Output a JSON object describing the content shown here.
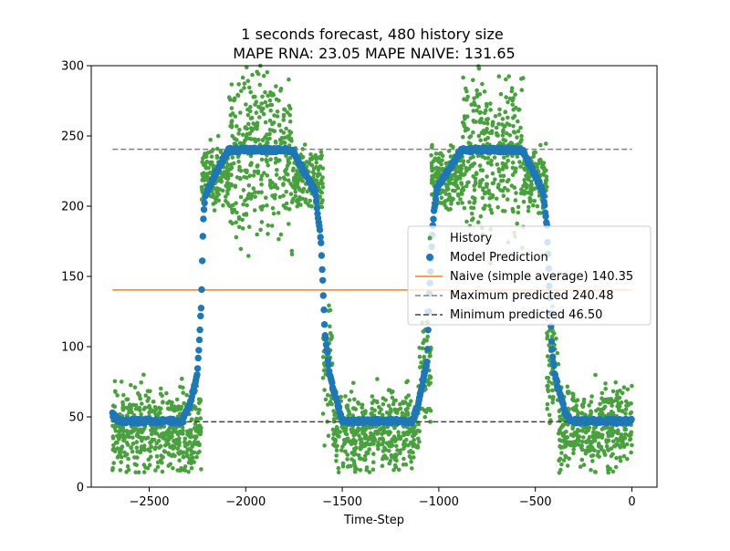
{
  "chart_data": {
    "type": "scatter",
    "title": "1 seconds forecast, 480 history size",
    "subtitle": "MAPE RNA: 23.05 MAPE NAIVE: 131.65",
    "xlabel": "Time-Step",
    "ylabel": "",
    "xlim": [
      -2800,
      130
    ],
    "ylim": [
      0,
      300
    ],
    "x_ticks": [
      -2500,
      -2000,
      -1500,
      -1000,
      -500,
      0
    ],
    "x_tick_labels": [
      "−2500",
      "−2000",
      "−1500",
      "−1000",
      "−500",
      "0"
    ],
    "y_ticks": [
      0,
      50,
      100,
      150,
      200,
      250,
      300
    ],
    "y_tick_labels": [
      "0",
      "50",
      "100",
      "150",
      "200",
      "250",
      "300"
    ],
    "grid": false,
    "legend_position": "center-right",
    "x_range": [
      -2690,
      0
    ],
    "profile_knots": [
      {
        "x": -2690,
        "y": 52
      },
      {
        "x": -2660,
        "y": 47
      },
      {
        "x": -2330,
        "y": 47
      },
      {
        "x": -2290,
        "y": 58
      },
      {
        "x": -2250,
        "y": 82
      },
      {
        "x": -2230,
        "y": 130
      },
      {
        "x": -2220,
        "y": 190
      },
      {
        "x": -2210,
        "y": 208
      },
      {
        "x": -2150,
        "y": 225
      },
      {
        "x": -2090,
        "y": 240
      },
      {
        "x": -1760,
        "y": 240
      },
      {
        "x": -1700,
        "y": 225
      },
      {
        "x": -1640,
        "y": 210
      },
      {
        "x": -1610,
        "y": 175
      },
      {
        "x": -1590,
        "y": 110
      },
      {
        "x": -1565,
        "y": 80
      },
      {
        "x": -1500,
        "y": 47
      },
      {
        "x": -1140,
        "y": 47
      },
      {
        "x": -1110,
        "y": 57
      },
      {
        "x": -1060,
        "y": 90
      },
      {
        "x": -1050,
        "y": 135
      },
      {
        "x": -1030,
        "y": 190
      },
      {
        "x": -1010,
        "y": 212
      },
      {
        "x": -940,
        "y": 228
      },
      {
        "x": -880,
        "y": 240
      },
      {
        "x": -570,
        "y": 240
      },
      {
        "x": -510,
        "y": 225
      },
      {
        "x": -460,
        "y": 210
      },
      {
        "x": -440,
        "y": 185
      },
      {
        "x": -415,
        "y": 100
      },
      {
        "x": -400,
        "y": 80
      },
      {
        "x": -350,
        "y": 55
      },
      {
        "x": -320,
        "y": 47
      },
      {
        "x": 0,
        "y": 47
      }
    ],
    "history_bands": [
      {
        "from": -2690,
        "to": -2230,
        "center": 40,
        "spread": 30
      },
      {
        "from": -2230,
        "to": -2090,
        "center": 220,
        "spread": 22
      },
      {
        "from": -2090,
        "to": -1760,
        "center": 240,
        "spread": 60
      },
      {
        "from": -1760,
        "to": -1600,
        "center": 220,
        "spread": 22
      },
      {
        "from": -1600,
        "to": -1550,
        "center": 85,
        "spread": 40
      },
      {
        "from": -1550,
        "to": -1100,
        "center": 40,
        "spread": 28
      },
      {
        "from": -1100,
        "to": -1040,
        "center": 90,
        "spread": 40
      },
      {
        "from": -1040,
        "to": -880,
        "center": 220,
        "spread": 22
      },
      {
        "from": -880,
        "to": -560,
        "center": 240,
        "spread": 60
      },
      {
        "from": -560,
        "to": -440,
        "center": 220,
        "spread": 22
      },
      {
        "from": -440,
        "to": -380,
        "center": 85,
        "spread": 40
      },
      {
        "from": -380,
        "to": 0,
        "center": 42,
        "spread": 28
      }
    ],
    "series": [
      {
        "name": "History",
        "kind": "scatter",
        "color": "#4aa03f"
      },
      {
        "name": "Model Prediction",
        "kind": "scatter",
        "color": "#1f77b4"
      },
      {
        "name": "Naive (simple average) 140.35",
        "kind": "hline",
        "value": 140.35,
        "color": "#ff7f0e"
      },
      {
        "name": "Maximum predicted 240.48",
        "kind": "hline-dashed",
        "value": 240.48,
        "color": "#808080"
      },
      {
        "name": "Minimum predicted 46.50",
        "kind": "hline-dashed",
        "value": 46.5,
        "color": "#404040"
      }
    ]
  }
}
